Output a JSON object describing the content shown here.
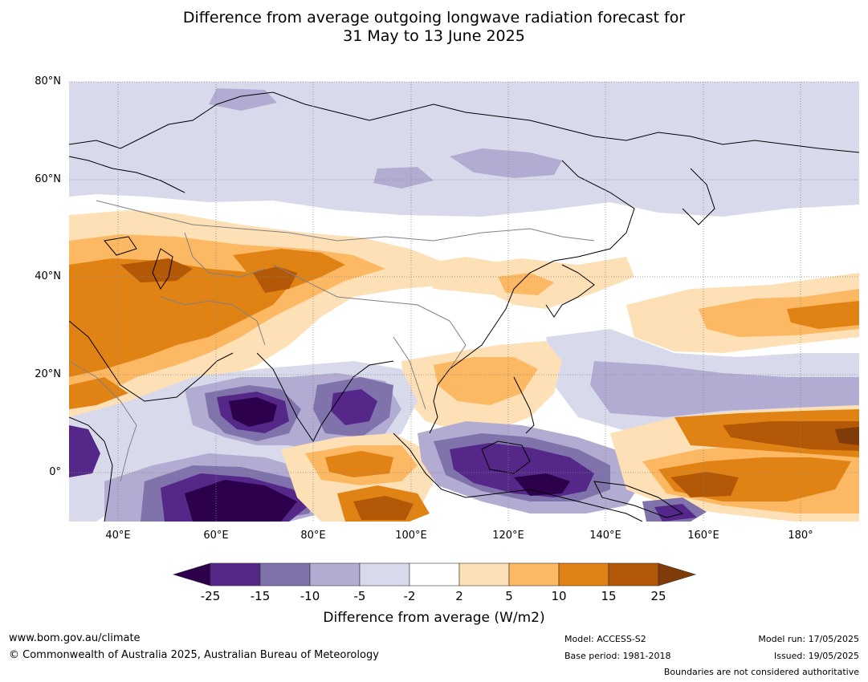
{
  "title": {
    "line1": "Difference from average outgoing longwave radiation forecast for",
    "line2": "31 May to 13 June 2025"
  },
  "map": {
    "lat_labels": [
      "80°N",
      "60°N",
      "40°N",
      "20°N",
      "0°"
    ],
    "lon_labels": [
      "40°E",
      "60°E",
      "80°E",
      "100°E",
      "120°E",
      "140°E",
      "160°E",
      "180°"
    ],
    "extent": {
      "lon_min": 30,
      "lon_max": 192,
      "lat_min": -10,
      "lat_max": 80
    }
  },
  "colorbar": {
    "title": "Difference from average (W/m2)",
    "ticks": [
      "-25",
      "-15",
      "-10",
      "-5",
      "-2",
      "2",
      "5",
      "10",
      "15",
      "25"
    ],
    "colors": {
      "below_-25": "#2d004b",
      "-25_to_-15": "#542788",
      "-15_to_-10": "#8073ac",
      "-10_to_-5": "#b2abd2",
      "-5_to_-2": "#d8daeb",
      "-2_to_2": "#ffffff",
      "2_to_5": "#fee0b6",
      "5_to_10": "#fdb863",
      "10_to_15": "#e08214",
      "15_to_25": "#b35806",
      "above_25": "#7f3b08"
    }
  },
  "footer": {
    "website": "www.bom.gov.au/climate",
    "copyright": "© Commonwealth of Australia 2025, Australian Bureau of Meteorology",
    "model": "Model: ACCESS-S2",
    "base_period": "Base period: 1981-2018",
    "model_run": "Model run: 17/05/2025",
    "issued": "Issued: 19/05/2025",
    "disclaimer": "Boundaries are not considered authoritative"
  }
}
